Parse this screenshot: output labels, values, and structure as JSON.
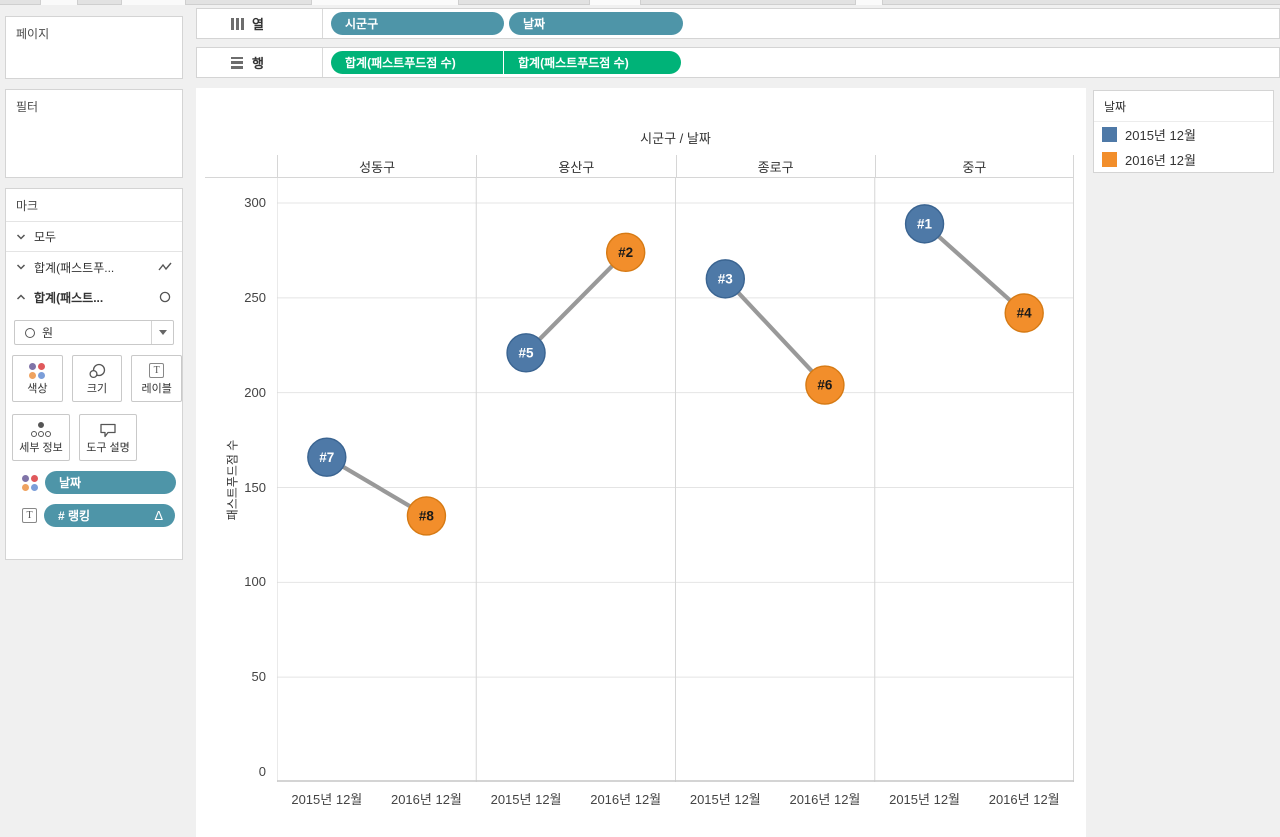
{
  "sidebar": {
    "pages_label": "페이지",
    "filters_label": "필터",
    "marks": {
      "title": "마크",
      "all_row": "모두",
      "line_row": "합계(패스트푸...",
      "circle_row": "합계(패스트...",
      "mark_type_selected": "원",
      "buttons": [
        {
          "label": "색상",
          "icon": "color-dots"
        },
        {
          "label": "크기",
          "icon": "size-circles"
        },
        {
          "label": "레이블",
          "icon": "label-t"
        },
        {
          "label": "세부 정보",
          "icon": "detail-dots"
        },
        {
          "label": "도구 설명",
          "icon": "tooltip-bubble"
        }
      ],
      "shelf_pills": [
        {
          "icon": "color-dots",
          "label": "날짜"
        },
        {
          "icon": "text",
          "label": "# 랭킹",
          "delta_indicator": "Δ"
        }
      ]
    }
  },
  "shelves": {
    "columns": {
      "label": "열",
      "pills": [
        "시군구",
        "날짜"
      ]
    },
    "rows": {
      "label": "행",
      "pills": [
        "합계(패스트푸드점 수)",
        "합계(패스트푸드점 수)"
      ]
    }
  },
  "chart_data": {
    "type": "scatter",
    "title": "시군구 / 날짜",
    "ylabel": "패스트푸드점 수",
    "ylim": [
      0,
      300
    ],
    "yticks": [
      0,
      50,
      100,
      150,
      200,
      250,
      300
    ],
    "x_categories": [
      "2015년 12월",
      "2016년 12월"
    ],
    "grid": true,
    "panels": [
      {
        "name": "성동구",
        "points": [
          {
            "series": "2015년 12월",
            "value": 166,
            "rank": "#7"
          },
          {
            "series": "2016년 12월",
            "value": 135,
            "rank": "#8"
          }
        ]
      },
      {
        "name": "용산구",
        "points": [
          {
            "series": "2015년 12월",
            "value": 221,
            "rank": "#5"
          },
          {
            "series": "2016년 12월",
            "value": 274,
            "rank": "#2"
          }
        ]
      },
      {
        "name": "종로구",
        "points": [
          {
            "series": "2015년 12월",
            "value": 260,
            "rank": "#3"
          },
          {
            "series": "2016년 12월",
            "value": 204,
            "rank": "#6"
          }
        ]
      },
      {
        "name": "중구",
        "points": [
          {
            "series": "2015년 12월",
            "value": 289,
            "rank": "#1"
          },
          {
            "series": "2016년 12월",
            "value": 242,
            "rank": "#4"
          }
        ]
      }
    ],
    "series_styles": {
      "2015년 12월": {
        "fill": "#4e79a7",
        "border": "#3a6491",
        "label": "#ffffff"
      },
      "2016년 12월": {
        "fill": "#f28e2b",
        "border": "#d67a14",
        "label": "#1a1a1a"
      }
    }
  },
  "legend": {
    "title": "날짜",
    "entries": [
      {
        "label": "2015년 12월",
        "color": "#4e79a7"
      },
      {
        "label": "2016년 12월",
        "color": "#f28e2b"
      }
    ]
  },
  "colors": {
    "dimension_pill": "#4e95a8",
    "measure_pill": "#00b378",
    "connector_line": "#999999",
    "grid_line": "#e4e4e4",
    "panel_border": "#d6d6d6",
    "axis_line": "#c6c6c6",
    "background": "#f0f0f0",
    "icon_dot_purple": "#8074a8",
    "icon_dot_red": "#e0595c",
    "icon_dot_orange": "#efa360",
    "icon_dot_blue": "#7b9ed9"
  }
}
